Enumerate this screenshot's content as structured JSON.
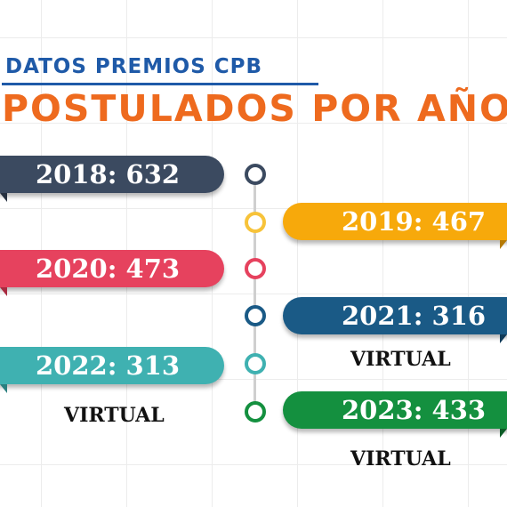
{
  "header": {
    "subtitle": "DATOS PREMIOS CPB",
    "title": "POSTULADOS POR AÑO"
  },
  "entries": [
    {
      "label": "2018: 632",
      "color": "#3b4a60",
      "side": "left"
    },
    {
      "label": "2019: 467",
      "color": "#f7a90b",
      "side": "right"
    },
    {
      "label": "2020: 473",
      "color": "#e6425e",
      "side": "left"
    },
    {
      "label": "2021: 316",
      "color": "#1a5a86",
      "side": "right",
      "note": "VIRTUAL"
    },
    {
      "label": "2022: 313",
      "color": "#3fb1b1",
      "side": "left",
      "note": "VIRTUAL"
    },
    {
      "label": "2023: 433",
      "color": "#14903f",
      "side": "right",
      "note": "VIRTUAL"
    }
  ]
}
